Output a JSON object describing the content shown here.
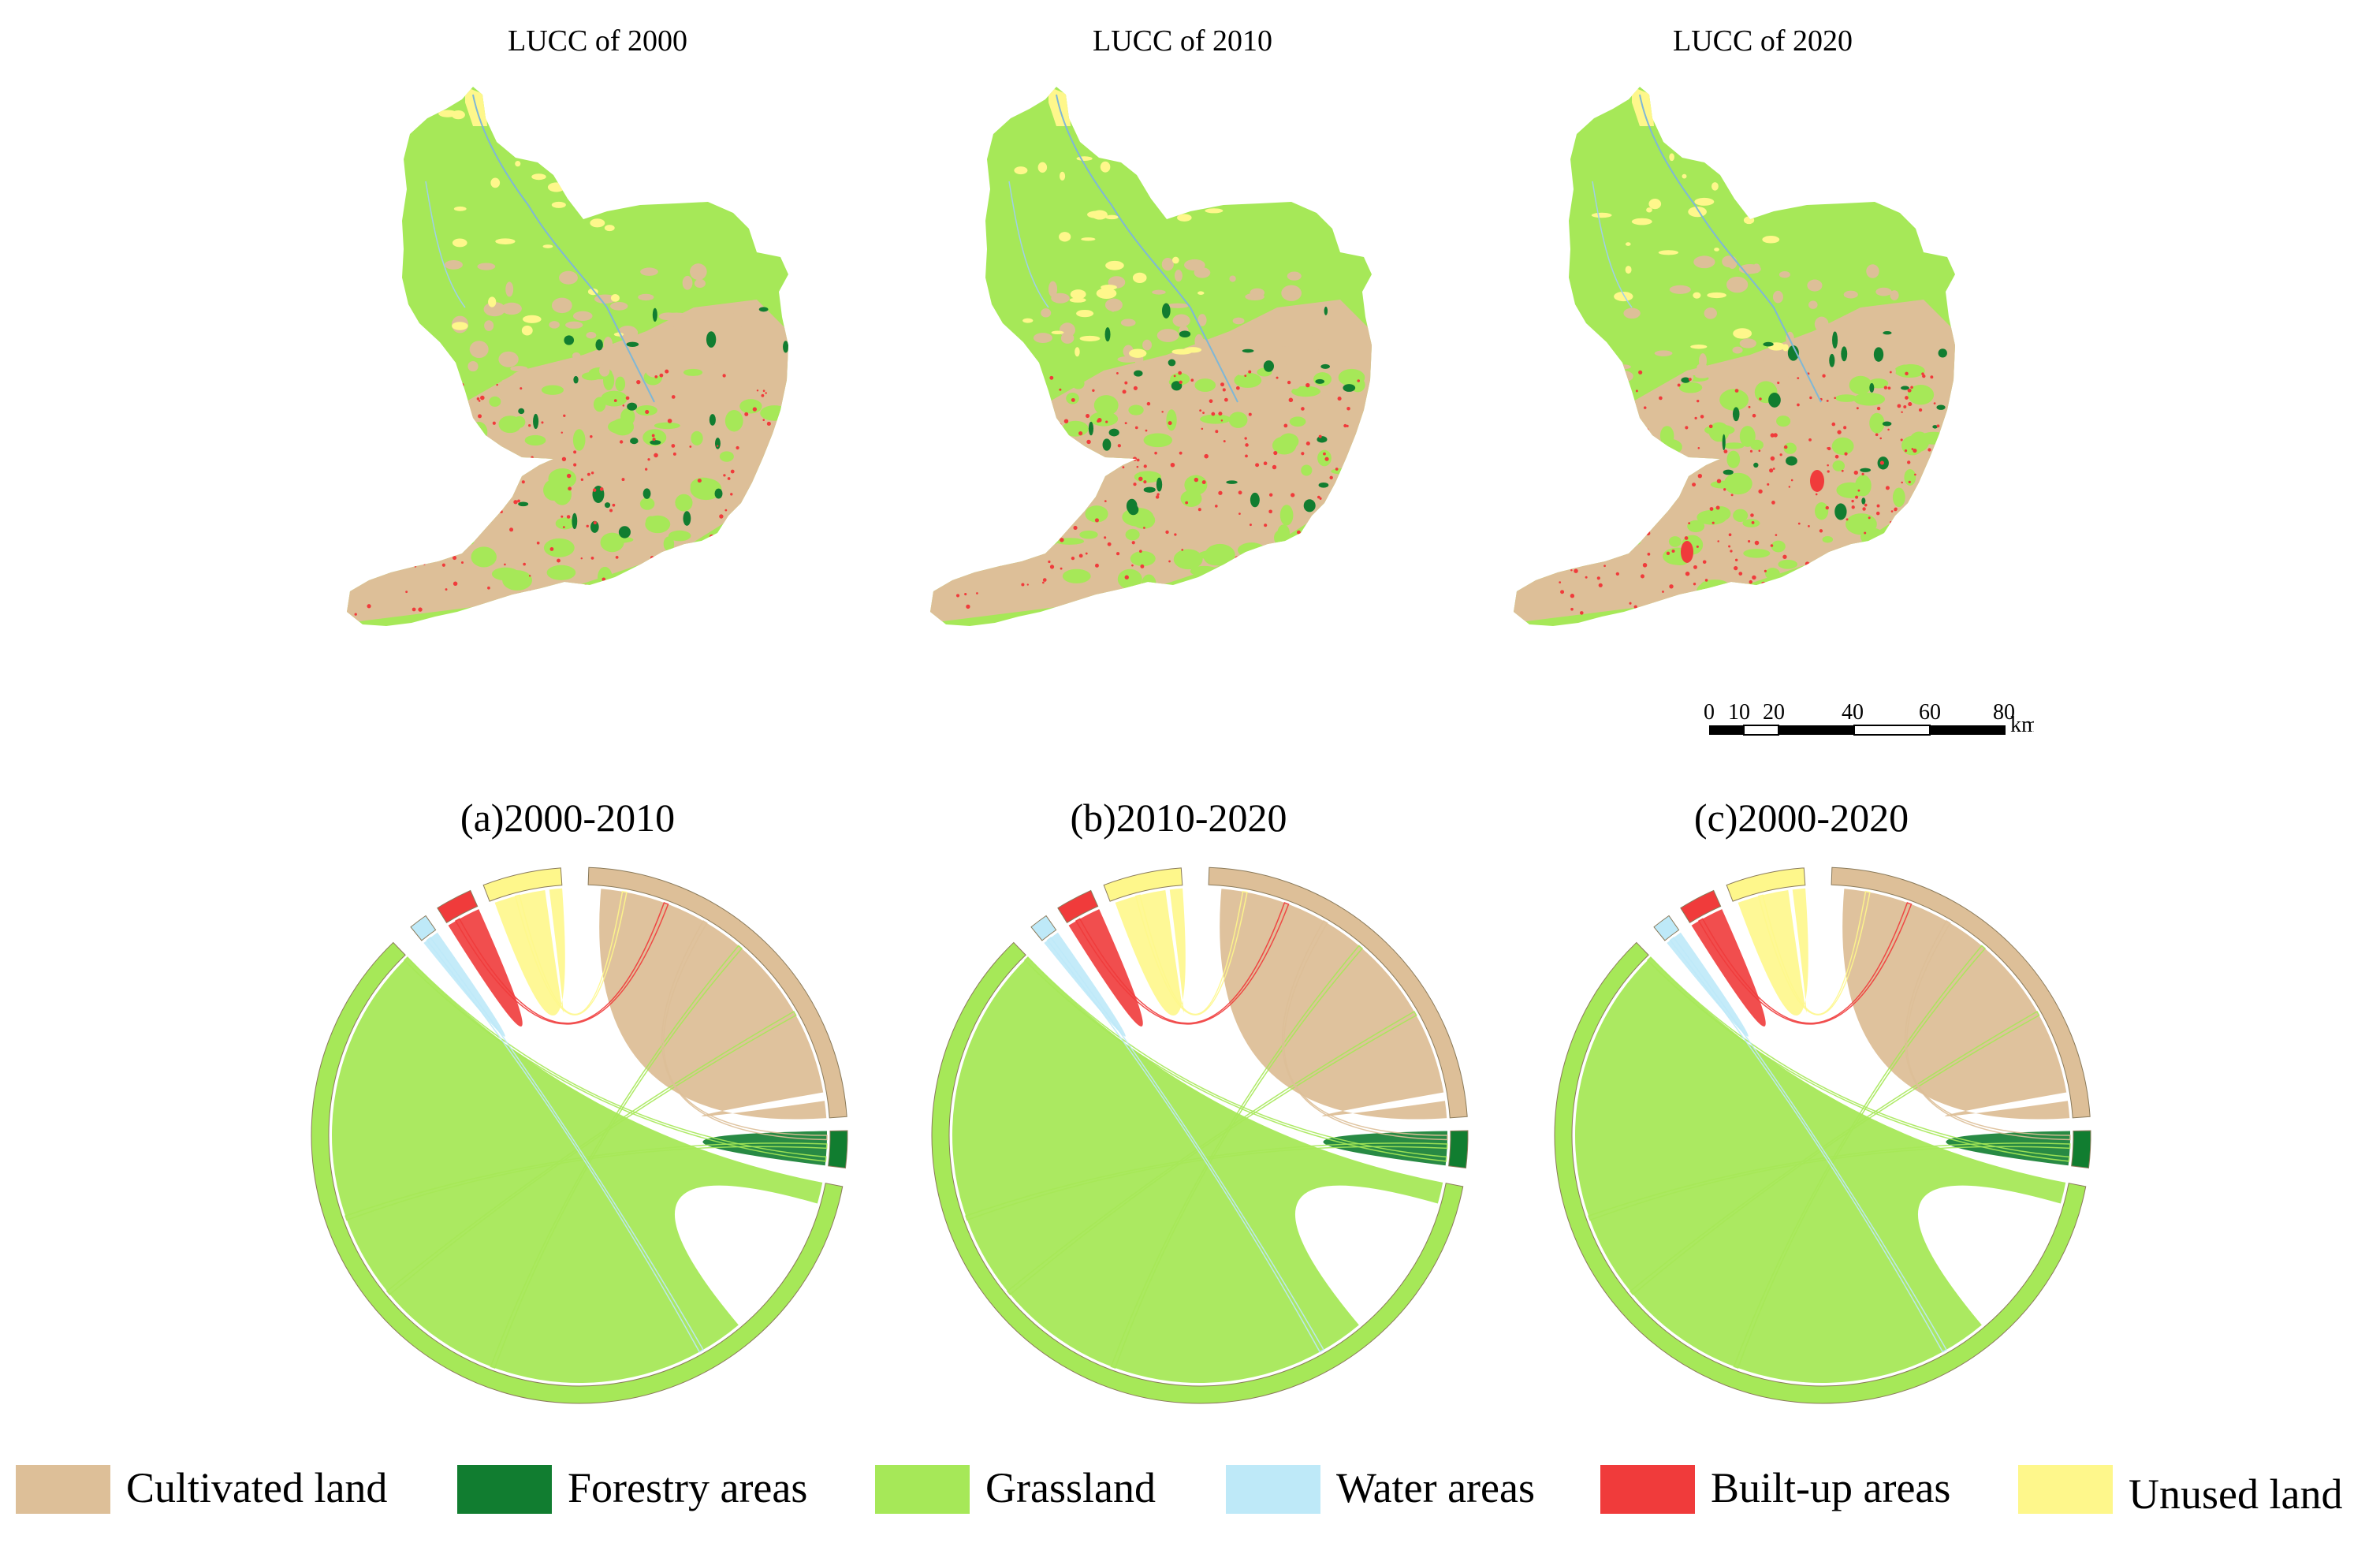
{
  "colors": {
    "cultivated": "#DDBF98",
    "forestry": "#117D30",
    "grassland": "#A6E858",
    "water": "#BEE9F8",
    "builtup": "#F03B3B",
    "unused": "#FEF78B"
  },
  "maps": [
    {
      "title": "LUCC of 2000"
    },
    {
      "title": "LUCC of 2010"
    },
    {
      "title": "LUCC of 2020"
    }
  ],
  "scalebar": {
    "ticks": [
      "0",
      "10",
      "20",
      "40",
      "60",
      "80"
    ],
    "unit": "km"
  },
  "chart_data": [
    {
      "type": "chord",
      "title": "(a)2000-2010",
      "groups": [
        "Cultivated land",
        "Forestry areas",
        "Grassland",
        "Water areas",
        "Built-up areas",
        "Unused land"
      ]
    },
    {
      "type": "chord",
      "title": "(b)2010-2020",
      "groups": [
        "Cultivated land",
        "Forestry areas",
        "Grassland",
        "Water areas",
        "Built-up areas",
        "Unused land"
      ]
    },
    {
      "type": "chord",
      "title": "(c)2000-2020",
      "groups": [
        "Cultivated land",
        "Forestry areas",
        "Grassland",
        "Water areas",
        "Built-up areas",
        "Unused land"
      ]
    }
  ],
  "legend": [
    {
      "label": "Cultivated land",
      "color": "#DDBF98"
    },
    {
      "label": "Forestry areas",
      "color": "#117D30"
    },
    {
      "label": "Grassland",
      "color": "#A6E858"
    },
    {
      "label": "Water areas",
      "color": "#BEE9F8"
    },
    {
      "label": "Built-up areas",
      "color": "#F03B3B"
    },
    {
      "label": "Unused land",
      "color": "#FEF78B"
    }
  ]
}
